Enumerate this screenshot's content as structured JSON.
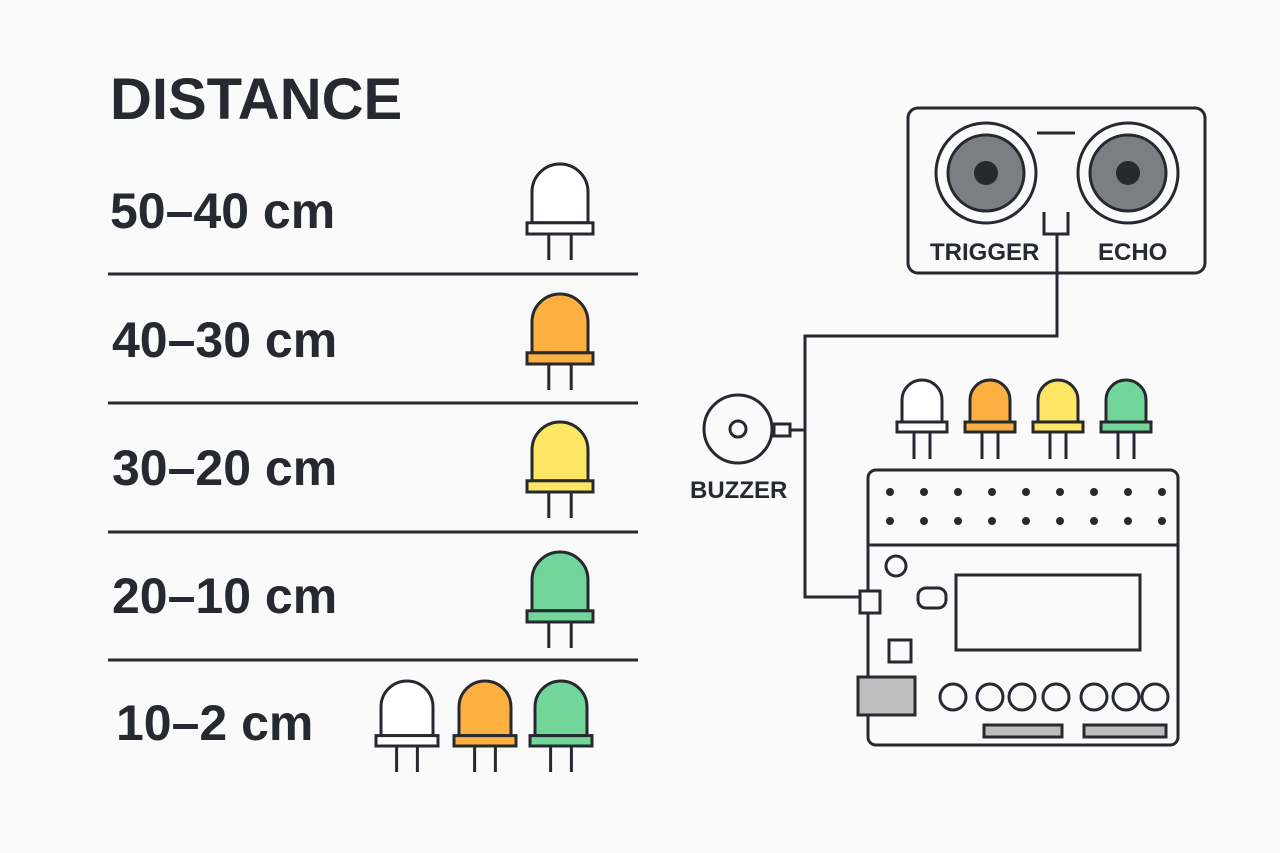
{
  "title": "DISTANCE",
  "rows": [
    {
      "range": "50–40 cm",
      "leds": [
        "white"
      ]
    },
    {
      "range": "40–30 cm",
      "leds": [
        "orange"
      ]
    },
    {
      "range": "30–20 cm",
      "leds": [
        "yellow"
      ]
    },
    {
      "range": "20–10 cm",
      "leds": [
        "green"
      ]
    },
    {
      "range": "10–2 cm",
      "leds": [
        "white",
        "orange",
        "green"
      ]
    }
  ],
  "sensor": {
    "trigger_label": "TRIGGER",
    "echo_label": "ECHO"
  },
  "buzzer": {
    "label": "BUZZER"
  },
  "board_leds": [
    "white",
    "orange",
    "yellow",
    "green"
  ],
  "colors": {
    "stroke": "#262a30",
    "background": "#fafafa",
    "led_white": "#ffffff",
    "led_orange": "#fbb040",
    "led_yellow": "#fde663",
    "led_green": "#72d59a",
    "transducer": "#7b7e82",
    "component_gray": "#bdbdbd"
  }
}
